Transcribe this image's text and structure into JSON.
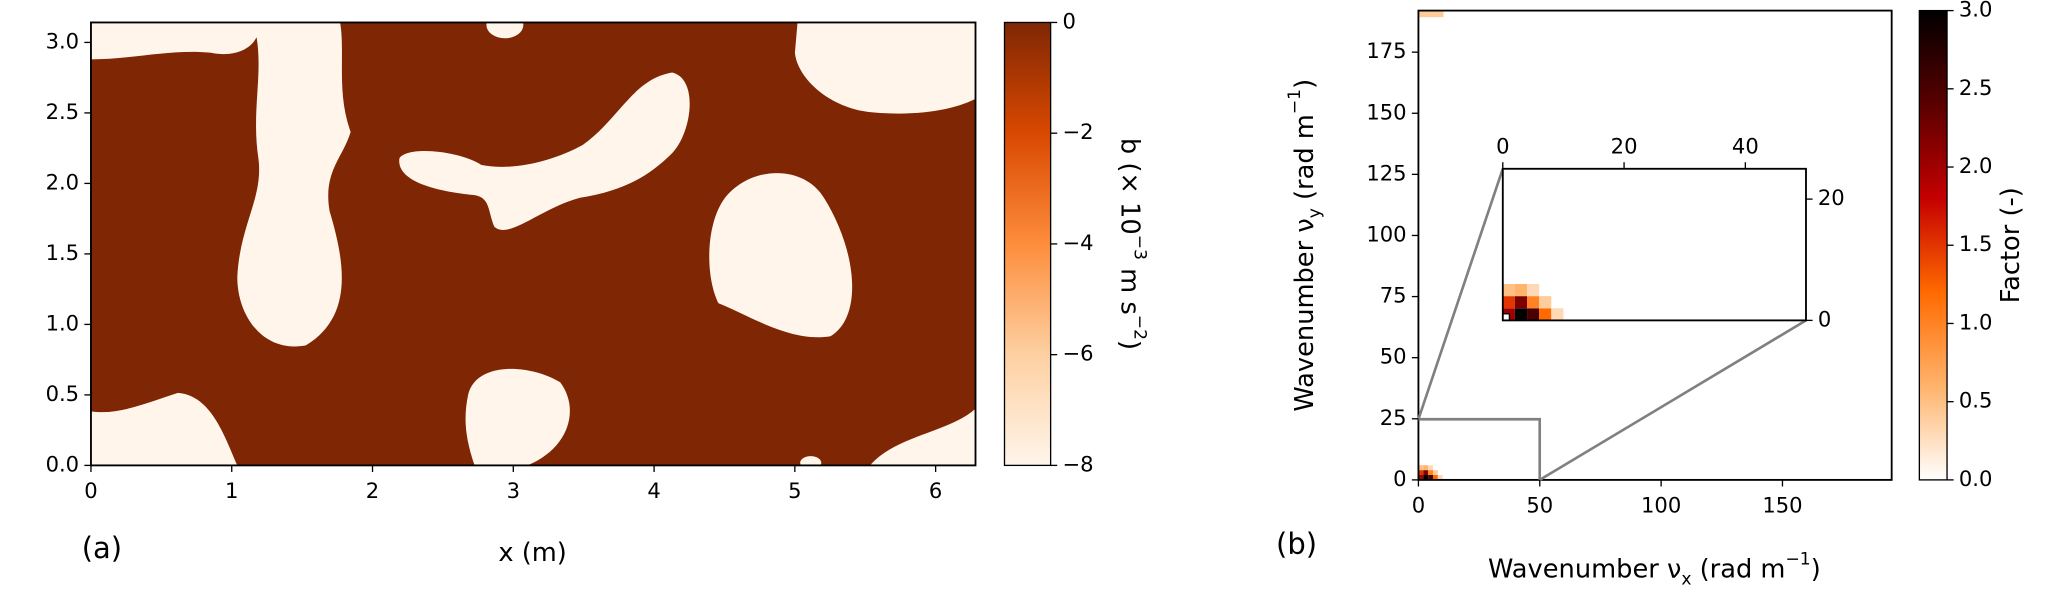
{
  "chart_data": [
    {
      "type": "heatmap",
      "panel_label": "(a)",
      "xlabel": "x (m)",
      "xlim": [
        0,
        6.2832
      ],
      "xticks": [
        0,
        1,
        2,
        3,
        4,
        5,
        6
      ],
      "ylim": [
        0,
        3.1416
      ],
      "yticks": [
        {
          "value": 0,
          "label": "0.0"
        },
        {
          "value": 0.5,
          "label": "0.5"
        },
        {
          "value": 1,
          "label": "1.0"
        },
        {
          "value": 1.5,
          "label": "1.5"
        },
        {
          "value": 2,
          "label": "2.0"
        },
        {
          "value": 2.5,
          "label": "2.5"
        },
        {
          "value": 3,
          "label": "3.0"
        }
      ],
      "colorbar_label": [
        "b (× 10",
        "−3",
        " m s",
        "−2",
        ")"
      ],
      "clim": [
        -8,
        0
      ],
      "cticks": [
        {
          "value": -8,
          "label": "−8"
        },
        {
          "value": -6,
          "label": "−6"
        },
        {
          "value": -4,
          "label": "−4"
        },
        {
          "value": -2,
          "label": "−2"
        },
        0
      ],
      "colormap": [
        "#fff5eb",
        "#fdd0a2",
        "#fd8d3c",
        "#d94801",
        "#7f2704"
      ]
    },
    {
      "type": "heatmap",
      "panel_label": "(b)",
      "xlabel": [
        "Wavenumber ν",
        "x",
        " (rad m",
        "−1",
        ")"
      ],
      "ylabel": [
        "Wavenumber ν",
        "y",
        " (rad m",
        "−1",
        ")"
      ],
      "xlim": [
        0,
        195
      ],
      "xticks": [
        0,
        50,
        100,
        150
      ],
      "ylim": [
        0,
        192
      ],
      "yticks": [
        0,
        25,
        50,
        75,
        100,
        125,
        150,
        175
      ],
      "colorbar_label": "Factor (-)",
      "clim": [
        0,
        3
      ],
      "cticks": [
        {
          "value": 0,
          "label": "0.0"
        },
        {
          "value": 0.5,
          "label": "0.5"
        },
        {
          "value": 1,
          "label": "1.0"
        },
        {
          "value": 1.5,
          "label": "1.5"
        },
        {
          "value": 2,
          "label": "2.0"
        },
        {
          "value": 2.5,
          "label": "2.5"
        },
        {
          "value": 3,
          "label": "3.0"
        }
      ],
      "colormap": [
        "#ffffff",
        "#ffb36b",
        "#ff6a00",
        "#c40000",
        "#5a0000",
        "#000000"
      ],
      "cells": {
        "x": [
          0,
          2,
          4,
          6,
          8,
          0,
          2,
          4,
          6,
          0,
          2,
          4
        ],
        "y": [
          0,
          0,
          0,
          0,
          0,
          2,
          2,
          2,
          2,
          4,
          4,
          4
        ],
        "values": [
          2.0,
          3.0,
          2.5,
          1.2,
          0.3,
          1.5,
          2.2,
          1.0,
          0.4,
          0.5,
          0.6,
          0.3
        ]
      },
      "inset": {
        "xlim": [
          0,
          50
        ],
        "ylim": [
          0,
          25
        ],
        "xticks": [
          0,
          20,
          40
        ],
        "yticks": [
          0,
          20
        ]
      }
    }
  ]
}
